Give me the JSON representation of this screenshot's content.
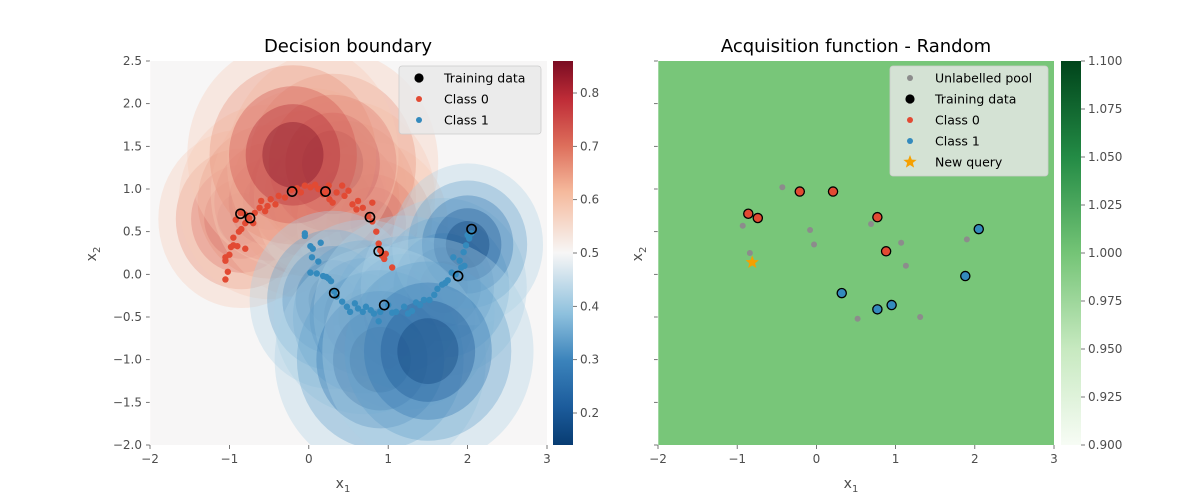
{
  "chart_data": [
    {
      "type": "heatmap",
      "title": "Decision boundary",
      "xlabel": "x",
      "xlabel_sub": "1",
      "ylabel": "x",
      "ylabel_sub": "2",
      "xlim": [
        -2,
        3
      ],
      "ylim": [
        -2,
        2.5
      ],
      "xticks": [
        "−2",
        "−1",
        "0",
        "1",
        "2",
        "3"
      ],
      "xtick_values": [
        -2,
        -1,
        0,
        1,
        2,
        3
      ],
      "yticks": [
        "−2.0",
        "−1.5",
        "−1.0",
        "−0.5",
        "0.0",
        "0.5",
        "1.0",
        "1.5",
        "2.0",
        "2.5"
      ],
      "ytick_values": [
        -2,
        -1.5,
        -1,
        -0.5,
        0,
        0.5,
        1,
        1.5,
        2,
        2.5
      ],
      "colormap": "RdBu_r",
      "colorbar": {
        "range": [
          0.14,
          0.86
        ],
        "ticks": [
          "0.2",
          "0.3",
          "0.4",
          "0.5",
          "0.6",
          "0.7",
          "0.8"
        ],
        "tick_values": [
          0.2,
          0.3,
          0.4,
          0.5,
          0.6,
          0.7,
          0.8
        ]
      },
      "legend": {
        "placement": "upper right",
        "entries": [
          {
            "label": "Training data",
            "color": "#000000",
            "marker": "circle-large"
          },
          {
            "label": "Class 0",
            "color": "#e24a33",
            "marker": "circle"
          },
          {
            "label": "Class 1",
            "color": "#348abd",
            "marker": "circle"
          }
        ]
      },
      "series": [
        {
          "name": "Class 0",
          "color": "#e24a33",
          "points": [
            [
              -1.05,
              -0.06
            ],
            [
              -1.02,
              0.03
            ],
            [
              -1.05,
              0.16
            ],
            [
              -1.05,
              0.2
            ],
            [
              -1.0,
              0.23
            ],
            [
              -0.98,
              0.32
            ],
            [
              -0.95,
              0.34
            ],
            [
              -0.9,
              0.33
            ],
            [
              -0.95,
              0.43
            ],
            [
              -0.88,
              0.5
            ],
            [
              -0.85,
              0.53
            ],
            [
              -0.8,
              0.6
            ],
            [
              -0.92,
              0.64
            ],
            [
              -0.86,
              0.72
            ],
            [
              -0.8,
              0.7
            ],
            [
              -0.75,
              0.66
            ],
            [
              -0.7,
              0.6
            ],
            [
              -0.68,
              0.72
            ],
            [
              -0.62,
              0.78
            ],
            [
              -0.6,
              0.86
            ],
            [
              -0.55,
              0.74
            ],
            [
              -0.52,
              0.8
            ],
            [
              -0.48,
              0.88
            ],
            [
              -0.42,
              0.82
            ],
            [
              -0.38,
              0.92
            ],
            [
              -0.3,
              0.9
            ],
            [
              -0.22,
              0.99
            ],
            [
              -0.15,
              1.01
            ],
            [
              -0.1,
              0.96
            ],
            [
              -0.05,
              1.04
            ],
            [
              0.02,
              1.02
            ],
            [
              0.08,
              1.05
            ],
            [
              0.12,
              1.0
            ],
            [
              0.18,
              0.94
            ],
            [
              0.22,
              0.97
            ],
            [
              0.25,
              1.04
            ],
            [
              0.26,
              0.88
            ],
            [
              0.3,
              0.84
            ],
            [
              0.35,
              0.96
            ],
            [
              0.42,
              1.04
            ],
            [
              0.45,
              0.92
            ],
            [
              0.5,
              0.98
            ],
            [
              0.55,
              0.82
            ],
            [
              0.6,
              0.76
            ],
            [
              0.62,
              0.86
            ],
            [
              0.68,
              0.78
            ],
            [
              0.75,
              0.68
            ],
            [
              0.8,
              0.62
            ],
            [
              0.85,
              0.5
            ],
            [
              0.88,
              0.36
            ],
            [
              0.9,
              0.28
            ],
            [
              0.92,
              0.22
            ],
            [
              0.95,
              0.18
            ],
            [
              1.05,
              0.08
            ],
            [
              0.8,
              0.84
            ],
            [
              -0.8,
              0.3
            ],
            [
              0.97,
              0.24
            ]
          ]
        },
        {
          "name": "Class 1",
          "color": "#348abd",
          "points": [
            [
              -0.05,
              0.48
            ],
            [
              -0.05,
              0.45
            ],
            [
              0.02,
              0.33
            ],
            [
              0.04,
              0.2
            ],
            [
              0.02,
              0.02
            ],
            [
              0.05,
              0.3
            ],
            [
              0.12,
              0.15
            ],
            [
              0.15,
              0.37
            ],
            [
              0.1,
              0.01
            ],
            [
              0.18,
              -0.02
            ],
            [
              0.22,
              -0.03
            ],
            [
              0.25,
              -0.05
            ],
            [
              0.28,
              -0.08
            ],
            [
              0.32,
              -0.2
            ],
            [
              0.35,
              -0.26
            ],
            [
              0.42,
              -0.32
            ],
            [
              0.48,
              -0.38
            ],
            [
              0.52,
              -0.44
            ],
            [
              0.58,
              -0.34
            ],
            [
              0.62,
              -0.4
            ],
            [
              0.68,
              -0.44
            ],
            [
              0.72,
              -0.38
            ],
            [
              0.78,
              -0.42
            ],
            [
              0.82,
              -0.46
            ],
            [
              0.88,
              -0.55
            ],
            [
              0.9,
              -0.44
            ],
            [
              1.0,
              -0.36
            ],
            [
              1.05,
              -0.45
            ],
            [
              1.1,
              -0.44
            ],
            [
              1.2,
              -0.38
            ],
            [
              1.25,
              -0.46
            ],
            [
              1.3,
              -0.43
            ],
            [
              1.35,
              -0.33
            ],
            [
              1.4,
              -0.36
            ],
            [
              1.45,
              -0.3
            ],
            [
              1.52,
              -0.3
            ],
            [
              1.58,
              -0.24
            ],
            [
              1.62,
              -0.17
            ],
            [
              1.68,
              -0.12
            ],
            [
              1.72,
              -0.1
            ],
            [
              1.75,
              -0.07
            ],
            [
              1.8,
              0.02
            ],
            [
              1.85,
              0.0
            ],
            [
              1.82,
              0.2
            ],
            [
              1.9,
              0.16
            ],
            [
              1.95,
              0.26
            ],
            [
              1.98,
              0.34
            ],
            [
              2.02,
              0.42
            ],
            [
              1.92,
              0.08
            ],
            [
              1.96,
              0.1
            ],
            [
              2.05,
              0.48
            ],
            [
              2.0,
              0.46
            ]
          ]
        },
        {
          "name": "Training data",
          "color": "#000000",
          "marker": "open-circle",
          "points": [
            [
              -0.86,
              0.71
            ],
            [
              -0.74,
              0.66
            ],
            [
              -0.21,
              0.97
            ],
            [
              0.21,
              0.97
            ],
            [
              0.77,
              0.67
            ],
            [
              0.88,
              0.27
            ],
            [
              0.32,
              -0.22
            ],
            [
              0.95,
              -0.36
            ],
            [
              1.88,
              -0.02
            ],
            [
              2.05,
              0.53
            ]
          ]
        }
      ]
    },
    {
      "type": "scatter",
      "title": "Acquisition function - Random",
      "xlabel": "x",
      "xlabel_sub": "1",
      "ylabel": "x",
      "ylabel_sub": "2",
      "xlim": [
        -2,
        3
      ],
      "ylim": [
        -2,
        2.5
      ],
      "xticks": [
        "−2",
        "−1",
        "0",
        "1",
        "2",
        "3"
      ],
      "xtick_values": [
        -2,
        -1,
        0,
        1,
        2,
        3
      ],
      "background_value": 1.0,
      "background_color": "#78c679",
      "colormap": "Greens",
      "colorbar": {
        "range": [
          0.9,
          1.1
        ],
        "ticks": [
          "0.900",
          "0.925",
          "0.950",
          "0.975",
          "1.000",
          "1.025",
          "1.050",
          "1.075",
          "1.100"
        ],
        "tick_values": [
          0.9,
          0.925,
          0.95,
          0.975,
          1.0,
          1.025,
          1.05,
          1.075,
          1.1
        ]
      },
      "legend": {
        "placement": "upper right",
        "entries": [
          {
            "label": "Unlabelled pool",
            "color": "#8c8c8c",
            "marker": "circle"
          },
          {
            "label": "Training data",
            "color": "#000000",
            "marker": "circle-large"
          },
          {
            "label": "Class 0",
            "color": "#e24a33",
            "marker": "circle"
          },
          {
            "label": "Class 1",
            "color": "#348abd",
            "marker": "circle"
          },
          {
            "label": "New query",
            "color": "#f5a000",
            "marker": "star"
          }
        ]
      },
      "series": [
        {
          "name": "Unlabelled pool",
          "color": "#8c8c8c",
          "points": [
            [
              -0.93,
              0.57
            ],
            [
              -0.84,
              0.25
            ],
            [
              -0.43,
              1.02
            ],
            [
              -0.08,
              0.52
            ],
            [
              -0.03,
              0.35
            ],
            [
              0.52,
              -0.52
            ],
            [
              0.69,
              0.59
            ],
            [
              1.07,
              0.37
            ],
            [
              1.13,
              0.1
            ],
            [
              1.31,
              -0.5
            ],
            [
              1.9,
              0.41
            ]
          ]
        },
        {
          "name": "Class 0",
          "color": "#e24a33",
          "outlined": true,
          "points": [
            [
              -0.86,
              0.71
            ],
            [
              -0.74,
              0.66
            ],
            [
              -0.21,
              0.97
            ],
            [
              0.21,
              0.97
            ],
            [
              0.77,
              0.67
            ],
            [
              0.88,
              0.27
            ]
          ]
        },
        {
          "name": "Class 1",
          "color": "#348abd",
          "outlined": true,
          "points": [
            [
              0.32,
              -0.22
            ],
            [
              0.77,
              -0.41
            ],
            [
              0.95,
              -0.36
            ],
            [
              1.88,
              -0.02
            ],
            [
              2.05,
              0.53
            ]
          ]
        },
        {
          "name": "New query",
          "color": "#f5a000",
          "marker": "star",
          "points": [
            [
              -0.81,
              0.14
            ]
          ]
        }
      ]
    }
  ]
}
